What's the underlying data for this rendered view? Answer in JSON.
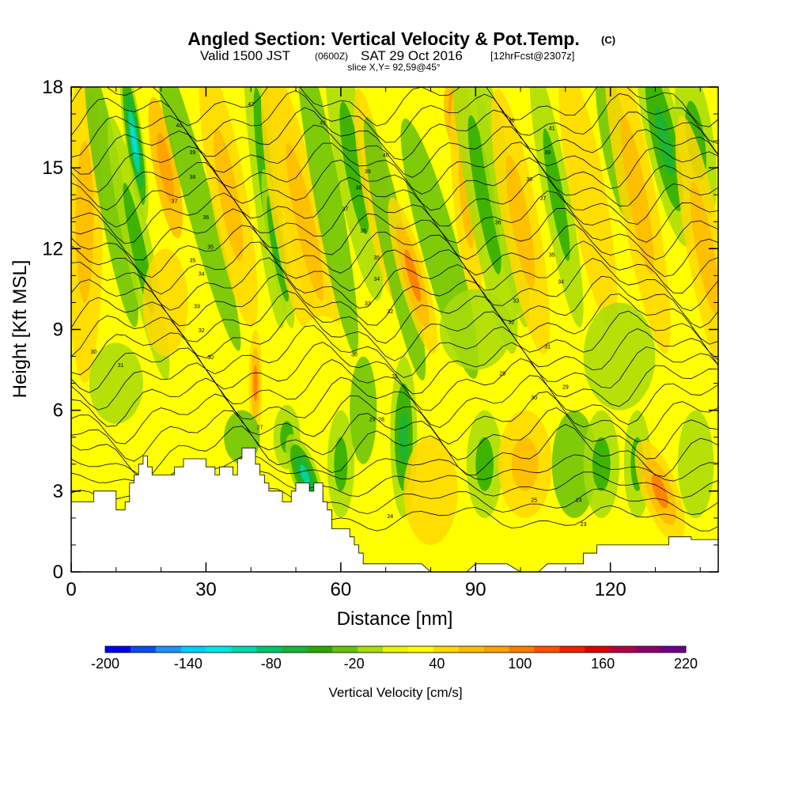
{
  "header": {
    "title": "Angled Section: Vertical Velocity & Pot.Temp.",
    "title_unit": "(C)",
    "valid_prefix": "Valid 1500 JST",
    "valid_utc": "(0600Z)",
    "valid_date": "SAT 29 Oct 2016",
    "forecast": "[12hrFcst@2307z]",
    "slice": "slice X,Y= 92,59@45°"
  },
  "chart_data": {
    "type": "heatmap",
    "xlabel": "Distance [nm]",
    "ylabel": "Height [Kft MSL]",
    "xlim": [
      0,
      144
    ],
    "ylim": [
      0,
      18
    ],
    "xticks": [
      0,
      30,
      60,
      90,
      120
    ],
    "yticks": [
      0,
      3,
      6,
      9,
      12,
      15,
      18
    ],
    "colorbar": {
      "title": "Vertical Velocity [cm/s]",
      "min": -200,
      "max": 220,
      "step": 20,
      "tick_labels": [
        "-200",
        "-140",
        "-80",
        "-20",
        "40",
        "100",
        "160",
        "220"
      ],
      "colors": [
        "#0000ee",
        "#0a4cf0",
        "#1e90ff",
        "#00cdff",
        "#00e5e5",
        "#00d8a8",
        "#00c46a",
        "#18b43a",
        "#2aaa00",
        "#68c20a",
        "#a8dc0a",
        "#e6f500",
        "#ffff00",
        "#ffd800",
        "#ffbb00",
        "#ff9f00",
        "#ff7a00",
        "#ff4f00",
        "#f02000",
        "#dc0000",
        "#b40042",
        "#8c0068",
        "#6e0090"
      ]
    },
    "terrain_top_kft": [
      [
        0,
        2.6
      ],
      [
        5,
        2.6
      ],
      [
        5,
        3.0
      ],
      [
        10,
        3.0
      ],
      [
        10,
        2.3
      ],
      [
        12,
        2.3
      ],
      [
        12,
        2.6
      ],
      [
        13,
        2.6
      ],
      [
        13,
        3.3
      ],
      [
        14,
        3.3
      ],
      [
        14,
        3.6
      ],
      [
        15,
        3.6
      ],
      [
        15,
        4.0
      ],
      [
        16,
        4.0
      ],
      [
        16,
        4.3
      ],
      [
        17,
        4.3
      ],
      [
        17,
        3.9
      ],
      [
        18,
        3.9
      ],
      [
        18,
        3.6
      ],
      [
        23,
        3.6
      ],
      [
        23,
        3.9
      ],
      [
        25,
        3.9
      ],
      [
        25,
        4.2
      ],
      [
        30,
        4.2
      ],
      [
        30,
        3.9
      ],
      [
        32,
        3.9
      ],
      [
        32,
        3.6
      ],
      [
        33,
        3.6
      ],
      [
        33,
        3.9
      ],
      [
        36,
        3.9
      ],
      [
        36,
        3.6
      ],
      [
        37,
        3.6
      ],
      [
        37,
        4.2
      ],
      [
        38,
        4.2
      ],
      [
        38,
        4.6
      ],
      [
        41,
        4.6
      ],
      [
        41,
        4.0
      ],
      [
        42,
        4.0
      ],
      [
        42,
        3.6
      ],
      [
        43,
        3.6
      ],
      [
        43,
        3.3
      ],
      [
        44,
        3.3
      ],
      [
        44,
        3.0
      ],
      [
        47,
        3.0
      ],
      [
        47,
        2.6
      ],
      [
        49,
        2.6
      ],
      [
        49,
        3.0
      ],
      [
        50,
        3.0
      ],
      [
        50,
        3.3
      ],
      [
        53,
        3.3
      ],
      [
        53,
        3.0
      ],
      [
        54,
        3.0
      ],
      [
        54,
        3.3
      ],
      [
        56,
        3.3
      ],
      [
        56,
        2.6
      ],
      [
        57,
        2.6
      ],
      [
        57,
        2.3
      ],
      [
        58,
        2.3
      ],
      [
        58,
        1.6
      ],
      [
        62,
        1.6
      ],
      [
        62,
        1.3
      ],
      [
        63,
        1.3
      ],
      [
        63,
        1.0
      ],
      [
        64,
        1.0
      ],
      [
        64,
        0.7
      ],
      [
        65,
        0.7
      ],
      [
        65,
        0.3
      ],
      [
        68,
        0.3
      ],
      [
        68,
        0.3
      ],
      [
        78,
        0.3
      ],
      [
        80,
        0.0
      ],
      [
        88,
        0.0
      ],
      [
        90,
        0.3
      ],
      [
        97,
        0.3
      ],
      [
        100,
        0.0
      ],
      [
        104,
        0.0
      ],
      [
        106,
        0.3
      ],
      [
        114,
        0.3
      ],
      [
        114,
        0.7
      ],
      [
        117,
        0.7
      ],
      [
        117,
        1.0
      ],
      [
        133,
        1.0
      ],
      [
        133,
        1.3
      ],
      [
        138,
        1.3
      ],
      [
        138,
        1.2
      ],
      [
        144,
        1.2
      ],
      [
        144,
        0.0
      ],
      [
        0,
        0.0
      ]
    ],
    "theta_labels_c": [
      {
        "x": 5,
        "y": 8.1,
        "v": "30"
      },
      {
        "x": 11,
        "y": 7.6,
        "v": "31"
      },
      {
        "x": 31,
        "y": 7.9,
        "v": "30"
      },
      {
        "x": 42,
        "y": 5.3,
        "v": "27"
      },
      {
        "x": 29,
        "y": 8.9,
        "v": "32"
      },
      {
        "x": 28,
        "y": 9.8,
        "v": "33"
      },
      {
        "x": 29,
        "y": 11.0,
        "v": "34"
      },
      {
        "x": 31,
        "y": 12.0,
        "v": "35"
      },
      {
        "x": 30,
        "y": 13.1,
        "v": "36"
      },
      {
        "x": 23,
        "y": 13.7,
        "v": "37"
      },
      {
        "x": 27,
        "y": 11.5,
        "v": "35"
      },
      {
        "x": 27,
        "y": 14.6,
        "v": "38"
      },
      {
        "x": 27,
        "y": 15.5,
        "v": "39"
      },
      {
        "x": 24,
        "y": 16.5,
        "v": "40"
      },
      {
        "x": 40,
        "y": 17.3,
        "v": "42"
      },
      {
        "x": 56,
        "y": 16.6,
        "v": "41"
      },
      {
        "x": 70,
        "y": 15.4,
        "v": "40"
      },
      {
        "x": 66,
        "y": 14.8,
        "v": "39"
      },
      {
        "x": 64,
        "y": 14.2,
        "v": "38"
      },
      {
        "x": 61,
        "y": 13.4,
        "v": "37"
      },
      {
        "x": 65,
        "y": 12.6,
        "v": "36"
      },
      {
        "x": 68,
        "y": 11.6,
        "v": "35"
      },
      {
        "x": 68,
        "y": 10.8,
        "v": "34"
      },
      {
        "x": 66,
        "y": 9.9,
        "v": "33"
      },
      {
        "x": 71,
        "y": 9.6,
        "v": "32"
      },
      {
        "x": 63,
        "y": 8.0,
        "v": "30"
      },
      {
        "x": 72,
        "y": 7.2,
        "v": "31"
      },
      {
        "x": 69,
        "y": 5.6,
        "v": "28"
      },
      {
        "x": 67,
        "y": 5.6,
        "v": "29"
      },
      {
        "x": 71,
        "y": 2.0,
        "v": "24"
      },
      {
        "x": 98,
        "y": 16.7,
        "v": "40"
      },
      {
        "x": 107,
        "y": 16.4,
        "v": "41"
      },
      {
        "x": 106,
        "y": 15.5,
        "v": "39"
      },
      {
        "x": 102,
        "y": 14.5,
        "v": "38"
      },
      {
        "x": 105,
        "y": 13.8,
        "v": "37"
      },
      {
        "x": 95,
        "y": 12.9,
        "v": "36"
      },
      {
        "x": 107,
        "y": 11.7,
        "v": "35"
      },
      {
        "x": 109,
        "y": 10.7,
        "v": "34"
      },
      {
        "x": 99,
        "y": 10.0,
        "v": "33"
      },
      {
        "x": 98,
        "y": 9.2,
        "v": "32"
      },
      {
        "x": 106,
        "y": 8.3,
        "v": "31"
      },
      {
        "x": 96,
        "y": 7.3,
        "v": "29"
      },
      {
        "x": 103,
        "y": 6.4,
        "v": "30"
      },
      {
        "x": 110,
        "y": 6.8,
        "v": "29"
      },
      {
        "x": 103,
        "y": 2.6,
        "v": "25"
      },
      {
        "x": 113,
        "y": 2.6,
        "v": "24"
      },
      {
        "x": 114,
        "y": 1.7,
        "v": "23"
      }
    ]
  }
}
